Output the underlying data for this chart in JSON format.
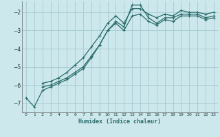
{
  "xlabel": "Humidex (Indice chaleur)",
  "background_color": "#cce8ec",
  "grid_color": "#aacdd4",
  "line_color": "#2a6b6a",
  "xlim": [
    -0.5,
    23.5
  ],
  "ylim": [
    -7.5,
    -1.4
  ],
  "yticks": [
    -7,
    -6,
    -5,
    -4,
    -3,
    -2
  ],
  "xticks": [
    0,
    1,
    2,
    3,
    4,
    5,
    6,
    7,
    8,
    9,
    10,
    11,
    12,
    13,
    14,
    15,
    16,
    17,
    18,
    19,
    20,
    21,
    22,
    23
  ],
  "series": [
    {
      "x": [
        0,
        1,
        2,
        3,
        4,
        5,
        6,
        7,
        8,
        9,
        10,
        11,
        12,
        13,
        14,
        15,
        16,
        17,
        18,
        19,
        20,
        21,
        22,
        23
      ],
      "y": [
        -6.7,
        -7.2,
        -6.3,
        -6.1,
        -5.9,
        -5.7,
        -5.4,
        -5.1,
        -4.5,
        -3.8,
        -3.0,
        -2.5,
        -2.8,
        -1.6,
        -1.6,
        -2.3,
        -2.6,
        -2.3,
        -2.3,
        -2.1,
        -2.1,
        -2.1,
        -2.3,
        -2.2
      ]
    },
    {
      "x": [
        2,
        3,
        4,
        5,
        6,
        7,
        8,
        9,
        10,
        11,
        12,
        13,
        14,
        15,
        16,
        17,
        18,
        19,
        20,
        21,
        22,
        23
      ],
      "y": [
        -6.1,
        -6.0,
        -5.8,
        -5.6,
        -5.3,
        -5.0,
        -4.4,
        -3.8,
        -3.0,
        -2.6,
        -3.0,
        -2.2,
        -2.1,
        -2.5,
        -2.7,
        -2.4,
        -2.5,
        -2.2,
        -2.2,
        -2.2,
        -2.4,
        -2.3
      ]
    },
    {
      "x": [
        2,
        3,
        4,
        5,
        6,
        7,
        8,
        9,
        10,
        11,
        12,
        13,
        14,
        15,
        16,
        17,
        18,
        19,
        20,
        21,
        22,
        23
      ],
      "y": [
        -5.9,
        -5.8,
        -5.6,
        -5.3,
        -4.9,
        -4.5,
        -3.9,
        -3.3,
        -2.6,
        -2.2,
        -2.6,
        -1.8,
        -1.8,
        -2.1,
        -2.3,
        -2.1,
        -2.2,
        -1.9,
        -2.0,
        -2.0,
        -2.1,
        -2.0
      ]
    }
  ]
}
